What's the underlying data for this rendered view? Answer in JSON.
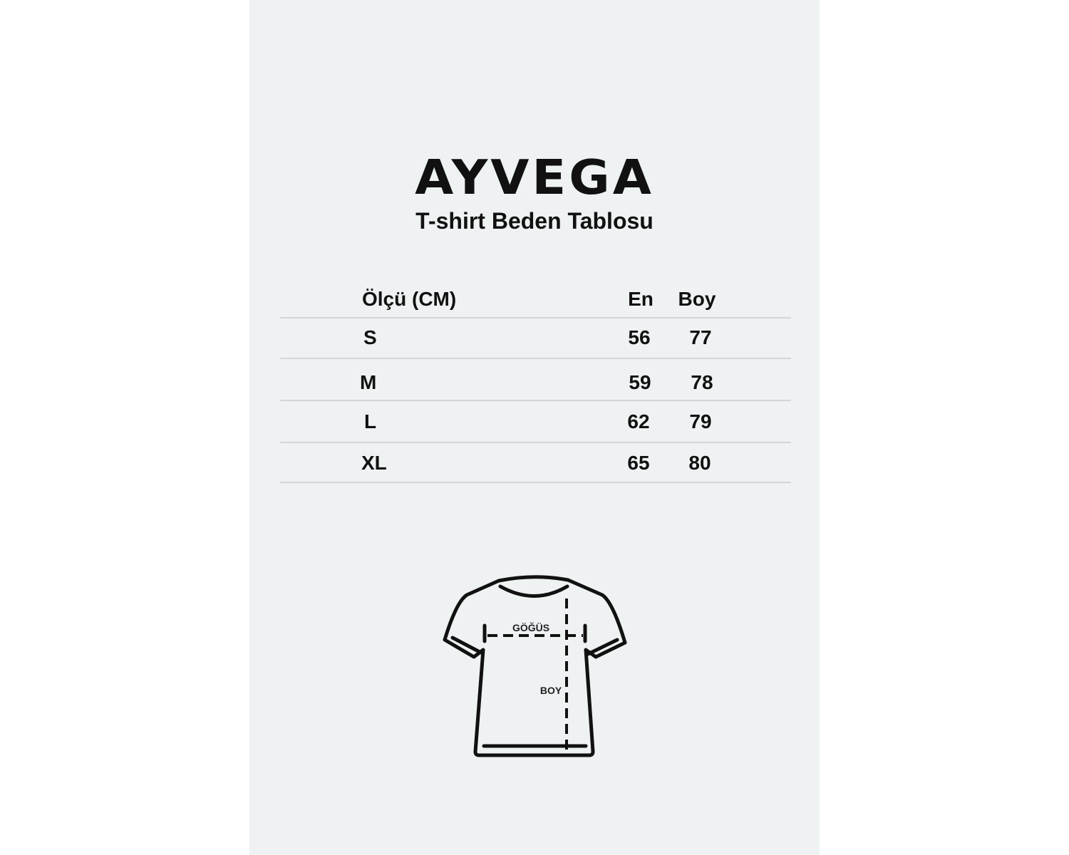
{
  "brand": {
    "logo_text": "AYVEGA"
  },
  "title": "T-shirt Beden Tablosu",
  "table": {
    "headers": [
      "Ölçü (CM)",
      "En",
      "Boy"
    ],
    "rows": [
      {
        "size": "S",
        "en": "56",
        "boy": "77"
      },
      {
        "size": "M",
        "en": "59",
        "boy": "78"
      },
      {
        "size": "L",
        "en": "62",
        "boy": "79"
      },
      {
        "size": "XL",
        "en": "65",
        "boy": "80"
      }
    ]
  },
  "diagram": {
    "chest_label": "GÖĞÜS",
    "length_label": "BOY"
  },
  "colors": {
    "panel_bg": "#eef2f3",
    "text": "#111111",
    "divider": "#d3d6d7"
  }
}
